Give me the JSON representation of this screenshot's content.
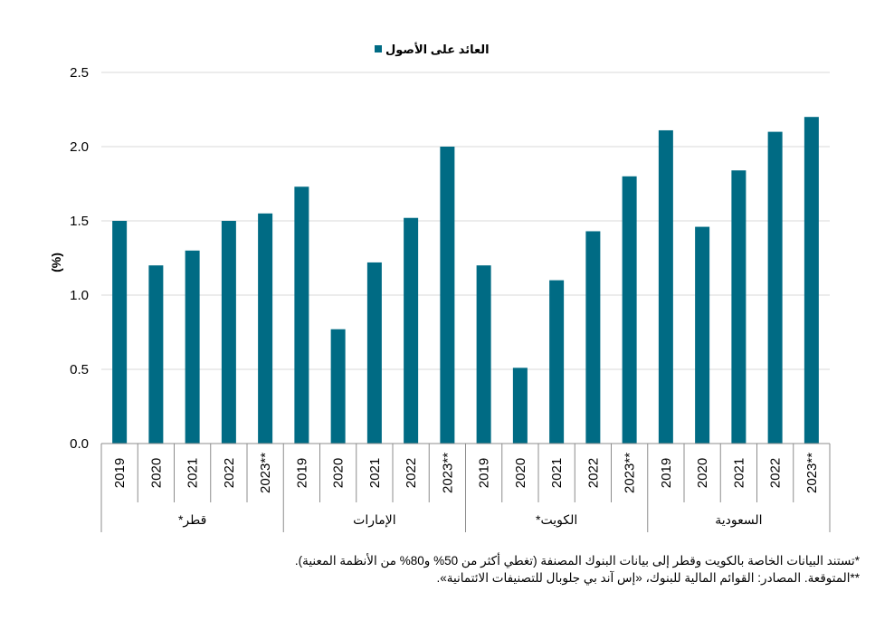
{
  "chart_data": {
    "type": "bar",
    "series": [
      {
        "name": "العائد على الأصول",
        "values": [
          1.5,
          1.2,
          1.3,
          1.5,
          1.55,
          1.73,
          0.77,
          1.22,
          1.52,
          2.0,
          1.2,
          0.51,
          1.1,
          1.43,
          1.8,
          2.11,
          1.46,
          1.84,
          2.1,
          2.2
        ]
      }
    ],
    "groups": [
      {
        "label": "قطر*",
        "categories": [
          "2019",
          "2020",
          "2021",
          "2022",
          "2023**"
        ]
      },
      {
        "label": "الإمارات",
        "categories": [
          "2019",
          "2020",
          "2021",
          "2022",
          "2023**"
        ]
      },
      {
        "label": "الكويت*",
        "categories": [
          "2019",
          "2020",
          "2021",
          "2022",
          "2023**"
        ]
      },
      {
        "label": "السعودية",
        "categories": [
          "2019",
          "2020",
          "2021",
          "2022",
          "2023**"
        ]
      }
    ],
    "ylabel": "(%)",
    "ylim": [
      0,
      2.5
    ],
    "yticks": [
      "0.0",
      "0.5",
      "1.0",
      "1.5",
      "2.0",
      "2.5"
    ],
    "grid": true,
    "legend_position": "top-center",
    "bar_color": "#006b84"
  },
  "footnotes": [
    "*تستند البيانات الخاصة بالكويت وقطر إلى بيانات البنوك المصنفة (تغطي أكثر من 50% و80% من الأنظمة المعنية).",
    "**المتوقعة. المصادر: القوائم المالية للبنوك، «إس آند بي جلوبال للتصنيفات الائتمانية»."
  ]
}
